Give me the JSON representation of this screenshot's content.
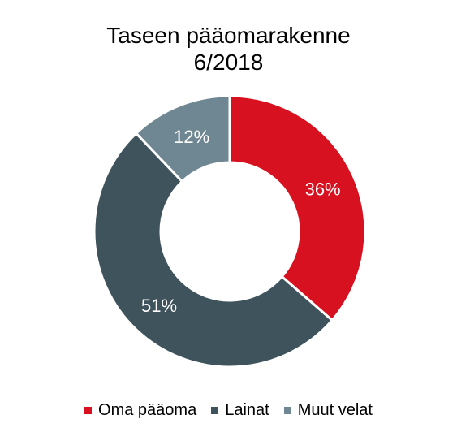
{
  "chart_data": {
    "type": "pie",
    "title": "Taseen pääomarakenne",
    "subtitle": "6/2018",
    "donut": true,
    "categories": [
      "Oma pääoma",
      "Lainat",
      "Muut velat"
    ],
    "values": [
      36,
      51,
      12
    ],
    "data_labels": [
      "36%",
      "51%",
      "12%"
    ],
    "colors": [
      "#D7111F",
      "#3F535C",
      "#6F8792"
    ],
    "legend": "bottom"
  }
}
